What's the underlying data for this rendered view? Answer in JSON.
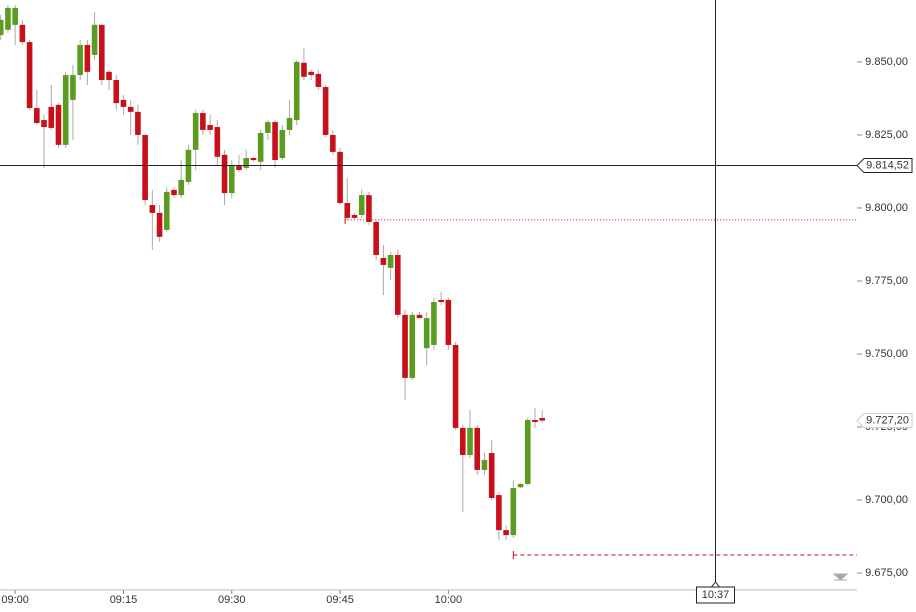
{
  "chart_data": {
    "type": "candlestick",
    "x": [
      538,
      539,
      540,
      541,
      542,
      543,
      544,
      545,
      546,
      547,
      548,
      549,
      550,
      551,
      552,
      553,
      554,
      555,
      556,
      557,
      558,
      559,
      560,
      561,
      562,
      563,
      564,
      565,
      566,
      567,
      568,
      569,
      570,
      571,
      572,
      573,
      574,
      575,
      576,
      577,
      578,
      579,
      580,
      581,
      582,
      583,
      584,
      585,
      586,
      587,
      588,
      589,
      590,
      591,
      592,
      593,
      594,
      595,
      596,
      597,
      598,
      599,
      600,
      601,
      602,
      603,
      604,
      605,
      606,
      607,
      608,
      609,
      610,
      611,
      612,
      613
    ],
    "open": [
      9859.2,
      9861.0,
      9862.7,
      9862.7,
      9856.8,
      9834.2,
      9830.1,
      9834.6,
      9835.3,
      9821.6,
      9837.0,
      9845.5,
      9855.8,
      9852.4,
      9862.7,
      9846.6,
      9843.8,
      9837.0,
      9834.6,
      9832.9,
      9825.0,
      9801.0,
      9798.3,
      9792.5,
      9806.2,
      9804.4,
      9808.9,
      9819.9,
      9832.5,
      9828.4,
      9827.7,
      9818.2,
      9805.1,
      9814.7,
      9813.7,
      9817.1,
      9815.8,
      9825.7,
      9829.4,
      9817.1,
      9826.7,
      9830.1,
      9849.7,
      9846.6,
      9845.9,
      9841.4,
      9825.0,
      9819.2,
      9801.7,
      9797.6,
      9797.6,
      9804.4,
      9795.2,
      9782.9,
      9779.5,
      9783.9,
      9763.4,
      9741.8,
      9763.4,
      9752.0,
      9753.1,
      9768.5,
      9768.5,
      9753.1,
      9724.7,
      9715.4,
      9724.7,
      9710.3,
      9716.1,
      9701.7,
      9689.7,
      9688.0,
      9704.4,
      9705.5,
      9727.4,
      9728.1
    ],
    "high": [
      9866.1,
      9869.5,
      9869.5,
      9864.4,
      9857.5,
      9840.4,
      9831.9,
      9842.1,
      9835.9,
      9846.6,
      9849.0,
      9857.5,
      9857.5,
      9867.1,
      9862.7,
      9847.3,
      9845.5,
      9838.7,
      9837.0,
      9835.3,
      9825.0,
      9806.2,
      9801.0,
      9806.9,
      9806.9,
      9816.4,
      9821.6,
      9833.6,
      9833.6,
      9831.9,
      9830.1,
      9819.9,
      9816.4,
      9818.2,
      9819.9,
      9817.5,
      9826.7,
      9830.1,
      9830.1,
      9828.4,
      9837.0,
      9850.7,
      9854.8,
      9847.3,
      9847.3,
      9842.1,
      9826.7,
      9820.6,
      9810.3,
      9798.3,
      9806.2,
      9805.5,
      9795.9,
      9787.3,
      9784.9,
      9785.6,
      9765.1,
      9764.4,
      9764.4,
      9764.4,
      9769.2,
      9771.2,
      9769.2,
      9754.1,
      9725.7,
      9730.8,
      9725.7,
      9716.1,
      9720.6,
      9702.7,
      9691.4,
      9706.8,
      9705.8,
      9728.1,
      9731.5,
      9730.8
    ],
    "low": [
      9857.5,
      9859.9,
      9855.8,
      9855.8,
      9833.6,
      9828.4,
      9813.7,
      9826.7,
      9820.6,
      9820.6,
      9823.3,
      9843.8,
      9842.1,
      9850.7,
      9842.1,
      9840.4,
      9833.6,
      9831.9,
      9825.0,
      9821.6,
      9801.0,
      9785.6,
      9788.4,
      9791.8,
      9803.4,
      9803.4,
      9807.9,
      9813.0,
      9825.0,
      9825.0,
      9814.7,
      9801.0,
      9803.4,
      9812.3,
      9813.0,
      9815.8,
      9813.0,
      9823.3,
      9813.7,
      9816.4,
      9825.0,
      9828.4,
      9843.8,
      9843.8,
      9840.4,
      9824.3,
      9818.2,
      9801.0,
      9795.9,
      9795.9,
      9796.6,
      9794.2,
      9782.2,
      9770.2,
      9775.3,
      9762.3,
      9734.2,
      9741.1,
      9762.3,
      9746.2,
      9751.4,
      9766.8,
      9751.4,
      9724.0,
      9695.9,
      9714.4,
      9708.6,
      9708.6,
      9700.0,
      9686.3,
      9686.3,
      9687.0,
      9704.1,
      9705.1,
      9724.7,
      9726.4
    ],
    "close": [
      9864.4,
      9868.5,
      9868.5,
      9856.8,
      9834.2,
      9829.1,
      9827.7,
      9827.4,
      9821.6,
      9845.5,
      9845.5,
      9855.8,
      9846.6,
      9862.7,
      9843.8,
      9843.8,
      9835.9,
      9834.6,
      9832.9,
      9825.0,
      9802.7,
      9798.3,
      9790.1,
      9805.5,
      9804.4,
      9809.6,
      9819.9,
      9832.5,
      9826.7,
      9826.7,
      9817.5,
      9805.1,
      9814.7,
      9813.0,
      9817.1,
      9816.4,
      9825.7,
      9829.4,
      9816.4,
      9826.7,
      9830.8,
      9850.0,
      9844.9,
      9845.5,
      9841.4,
      9825.0,
      9819.2,
      9801.7,
      9796.6,
      9796.6,
      9804.4,
      9795.2,
      9783.9,
      9780.5,
      9783.9,
      9763.4,
      9741.8,
      9763.4,
      9762.3,
      9762.3,
      9767.8,
      9767.8,
      9753.1,
      9724.7,
      9715.4,
      9724.7,
      9710.3,
      9713.7,
      9700.7,
      9689.7,
      9688.0,
      9704.1,
      9705.5,
      9727.4,
      9726.7,
      9727.2
    ],
    "up_color": "#5b9b1f",
    "down_color": "#c8101a",
    "xlim": [
      537.9,
      656.6
    ],
    "ylim": [
      9669.2,
      9871.2
    ],
    "xticks": [
      {
        "value": 540,
        "label": "09:00"
      },
      {
        "value": 555,
        "label": "09:15"
      },
      {
        "value": 570,
        "label": "09:30"
      },
      {
        "value": 585,
        "label": "09:45"
      },
      {
        "value": 600,
        "label": "10:00"
      }
    ],
    "yticks": [
      {
        "value": 9675,
        "label": "9.675,00"
      },
      {
        "value": 9700,
        "label": "9.700,00"
      },
      {
        "value": 9725,
        "label": "9.725,00"
      },
      {
        "value": 9750,
        "label": "9.750,00"
      },
      {
        "value": 9775,
        "label": "9.775,00"
      },
      {
        "value": 9800,
        "label": "9.800,00"
      },
      {
        "value": 9825,
        "label": "9.825,00"
      },
      {
        "value": 9850,
        "label": "9.850,00"
      }
    ],
    "crosshair": {
      "x": {
        "value": 637,
        "label": "10:37"
      },
      "y": {
        "value": 9814.52,
        "label": "9.814,52"
      }
    },
    "last_price": {
      "value": 9727.2,
      "label": "9.727,20"
    },
    "order_lines": [
      {
        "value": 9795.9,
        "start": 585.7,
        "style": "dotted"
      },
      {
        "value": 9681.2,
        "start": 609,
        "style": "dashed"
      }
    ]
  }
}
